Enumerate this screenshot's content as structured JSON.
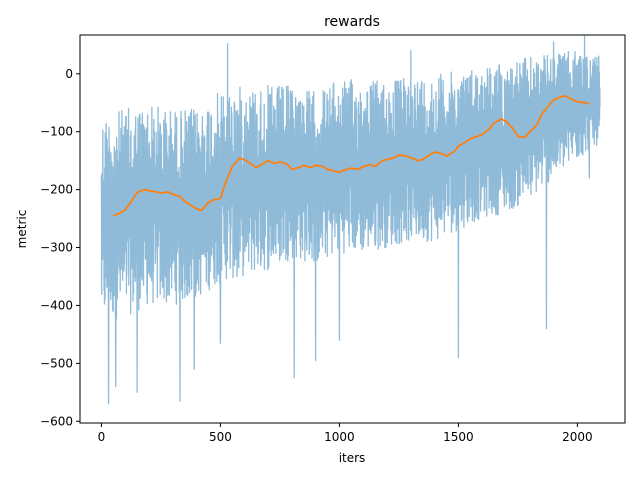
{
  "chart_data": {
    "type": "line",
    "title": "rewards",
    "xlabel": "iters",
    "ylabel": "metric",
    "xlim": [
      -90,
      2200
    ],
    "ylim": [
      -603,
      67
    ],
    "xticks": [
      0,
      500,
      1000,
      1500,
      2000
    ],
    "yticks": [
      -600,
      -500,
      -400,
      -300,
      -200,
      -100,
      0
    ],
    "xtick_labels": [
      "0",
      "500",
      "1000",
      "1500",
      "2000"
    ],
    "ytick_labels": [
      "−600",
      "−500",
      "−400",
      "−300",
      "−200",
      "−100",
      "0"
    ],
    "grid": false,
    "legend": "none",
    "colors": {
      "raw": "#1f77b4",
      "smoothed": "#ff7f0e"
    },
    "series": [
      {
        "style": "raw",
        "x_range": [
          0,
          2095
        ],
        "band_lower": [
          [
            0,
            -430
          ],
          [
            100,
            -420
          ],
          [
            200,
            -400
          ],
          [
            300,
            -400
          ],
          [
            400,
            -390
          ],
          [
            500,
            -360
          ],
          [
            600,
            -350
          ],
          [
            700,
            -340
          ],
          [
            800,
            -320
          ],
          [
            900,
            -330
          ],
          [
            1000,
            -310
          ],
          [
            1100,
            -310
          ],
          [
            1200,
            -300
          ],
          [
            1300,
            -290
          ],
          [
            1400,
            -290
          ],
          [
            1500,
            -270
          ],
          [
            1600,
            -250
          ],
          [
            1700,
            -240
          ],
          [
            1800,
            -220
          ],
          [
            1900,
            -180
          ],
          [
            2000,
            -150
          ],
          [
            2095,
            -120
          ]
        ],
        "band_upper": [
          [
            0,
            -70
          ],
          [
            100,
            -60
          ],
          [
            200,
            -50
          ],
          [
            300,
            -60
          ],
          [
            400,
            -60
          ],
          [
            500,
            -30
          ],
          [
            600,
            -20
          ],
          [
            700,
            -20
          ],
          [
            800,
            -20
          ],
          [
            900,
            -30
          ],
          [
            1000,
            -10
          ],
          [
            1100,
            -10
          ],
          [
            1200,
            -10
          ],
          [
            1300,
            -5
          ],
          [
            1400,
            0
          ],
          [
            1500,
            5
          ],
          [
            1600,
            15
          ],
          [
            1700,
            20
          ],
          [
            1800,
            30
          ],
          [
            1900,
            35
          ],
          [
            2000,
            40
          ],
          [
            2095,
            30
          ]
        ],
        "spikes": [
          [
            30,
            -570
          ],
          [
            60,
            -540
          ],
          [
            150,
            -550
          ],
          [
            330,
            -565
          ],
          [
            390,
            -510
          ],
          [
            500,
            -465
          ],
          [
            570,
            -350
          ],
          [
            810,
            -525
          ],
          [
            900,
            -495
          ],
          [
            1000,
            -460
          ],
          [
            1500,
            -490
          ],
          [
            1870,
            -440
          ],
          [
            2050,
            -180
          ],
          [
            530,
            52
          ],
          [
            1300,
            40
          ],
          [
            1900,
            55
          ],
          [
            2030,
            65
          ]
        ]
      },
      {
        "style": "smoothed",
        "x": [
          50,
          80,
          100,
          130,
          150,
          180,
          200,
          220,
          250,
          280,
          300,
          330,
          350,
          380,
          400,
          420,
          450,
          470,
          500,
          520,
          550,
          580,
          600,
          630,
          650,
          680,
          700,
          730,
          750,
          780,
          800,
          830,
          850,
          880,
          900,
          930,
          950,
          980,
          1000,
          1030,
          1050,
          1080,
          1100,
          1130,
          1150,
          1180,
          1200,
          1230,
          1250,
          1280,
          1300,
          1330,
          1350,
          1380,
          1400,
          1430,
          1450,
          1480,
          1500,
          1530,
          1550,
          1580,
          1600,
          1630,
          1650,
          1680,
          1700,
          1730,
          1750,
          1780,
          1800,
          1830,
          1850,
          1880,
          1900,
          1930,
          1950,
          1980,
          2000,
          2030,
          2050
        ],
        "y": [
          -245,
          -240,
          -235,
          -218,
          -205,
          -200,
          -202,
          -203,
          -206,
          -204,
          -208,
          -212,
          -220,
          -228,
          -233,
          -236,
          -222,
          -218,
          -215,
          -190,
          -160,
          -146,
          -148,
          -156,
          -162,
          -155,
          -150,
          -155,
          -152,
          -156,
          -165,
          -162,
          -158,
          -162,
          -158,
          -160,
          -165,
          -168,
          -170,
          -165,
          -163,
          -165,
          -160,
          -157,
          -160,
          -150,
          -148,
          -145,
          -140,
          -142,
          -145,
          -150,
          -148,
          -140,
          -135,
          -138,
          -142,
          -135,
          -125,
          -118,
          -112,
          -108,
          -105,
          -95,
          -85,
          -78,
          -82,
          -95,
          -108,
          -110,
          -100,
          -88,
          -70,
          -55,
          -45,
          -40,
          -38,
          -45,
          -48,
          -50,
          -52
        ]
      }
    ]
  }
}
